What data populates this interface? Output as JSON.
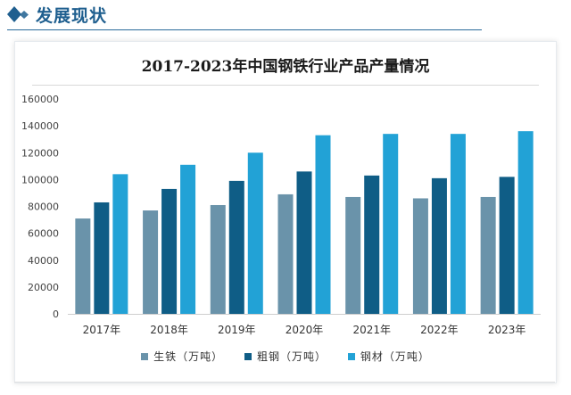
{
  "header": {
    "title": "发展现状"
  },
  "colors": {
    "header": "#1f5f8f",
    "series": [
      "#6a93aa",
      "#0f5d86",
      "#22a2d6"
    ]
  },
  "chart_data": {
    "type": "bar",
    "title": "2017-2023年中国钢铁行业产品产量情况",
    "categories": [
      "2017年",
      "2018年",
      "2019年",
      "2020年",
      "2021年",
      "2022年",
      "2023年"
    ],
    "series": [
      {
        "name": "生铁（万吨）",
        "values": [
          71000,
          77000,
          81000,
          89000,
          87000,
          86000,
          87000
        ]
      },
      {
        "name": "粗钢（万吨）",
        "values": [
          83000,
          93000,
          99000,
          106000,
          103000,
          101000,
          102000
        ]
      },
      {
        "name": "钢材（万吨）",
        "values": [
          104000,
          111000,
          120000,
          133000,
          134000,
          134000,
          136000
        ]
      }
    ],
    "yticks": [
      "0",
      "20000",
      "40000",
      "60000",
      "80000",
      "100000",
      "120000",
      "140000",
      "160000"
    ],
    "ylim": [
      0,
      160000
    ],
    "xlabel": "",
    "ylabel": "",
    "legend": "bottom"
  }
}
